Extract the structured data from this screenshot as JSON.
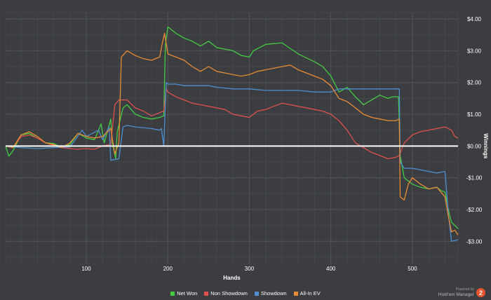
{
  "chart_data": {
    "type": "line",
    "xlabel": "Hands",
    "ylabel": "Winnings",
    "xlim": [
      1,
      556
    ],
    "ylim": [
      -3.7,
      4.2
    ],
    "x_ticks": [
      100,
      200,
      300,
      400,
      500
    ],
    "y_ticks": [
      {
        "value": 4,
        "label": "$4.00"
      },
      {
        "value": 3,
        "label": "$3.00"
      },
      {
        "value": 2,
        "label": "$2.00"
      },
      {
        "value": 1,
        "label": "$1.00"
      },
      {
        "value": 0,
        "label": "$0.00"
      },
      {
        "value": -1,
        "label": "-$1.00"
      },
      {
        "value": -2,
        "label": "-$2.00"
      },
      {
        "value": -3,
        "label": "-$3.00"
      }
    ],
    "grid": true,
    "legend_position": "bottom",
    "series": [
      {
        "name": "Net Won",
        "color": "#44cc44",
        "points": [
          [
            1,
            0
          ],
          [
            5,
            -0.32
          ],
          [
            10,
            -0.15
          ],
          [
            20,
            0.35
          ],
          [
            30,
            0.4
          ],
          [
            40,
            0.25
          ],
          [
            50,
            0.1
          ],
          [
            60,
            0.08
          ],
          [
            70,
            -0.05
          ],
          [
            80,
            0.05
          ],
          [
            90,
            0.4
          ],
          [
            100,
            0.25
          ],
          [
            110,
            0.2
          ],
          [
            115,
            0.5
          ],
          [
            118,
            0.7
          ],
          [
            122,
            0.1
          ],
          [
            130,
            0.85
          ],
          [
            132,
            0.1
          ],
          [
            136,
            -0.4
          ],
          [
            138,
            0.45
          ],
          [
            145,
            1.2
          ],
          [
            150,
            1.3
          ],
          [
            160,
            1.0
          ],
          [
            170,
            0.9
          ],
          [
            180,
            0.85
          ],
          [
            190,
            0.9
          ],
          [
            195,
            0.95
          ],
          [
            197,
            3.2
          ],
          [
            200,
            3.75
          ],
          [
            205,
            3.65
          ],
          [
            210,
            3.55
          ],
          [
            220,
            3.4
          ],
          [
            230,
            3.3
          ],
          [
            240,
            3.15
          ],
          [
            250,
            3.3
          ],
          [
            260,
            3.1
          ],
          [
            270,
            3.05
          ],
          [
            280,
            3.0
          ],
          [
            290,
            2.85
          ],
          [
            300,
            2.8
          ],
          [
            305,
            3.0
          ],
          [
            320,
            3.2
          ],
          [
            340,
            3.25
          ],
          [
            360,
            2.9
          ],
          [
            380,
            2.65
          ],
          [
            390,
            2.5
          ],
          [
            400,
            2.2
          ],
          [
            410,
            1.7
          ],
          [
            420,
            1.85
          ],
          [
            430,
            1.55
          ],
          [
            440,
            1.3
          ],
          [
            450,
            1.45
          ],
          [
            460,
            1.6
          ],
          [
            470,
            1.5
          ],
          [
            475,
            1.55
          ],
          [
            483,
            1.55
          ],
          [
            485,
            -0.3
          ],
          [
            490,
            -1.0
          ],
          [
            500,
            -1.2
          ],
          [
            510,
            -1.3
          ],
          [
            520,
            -1.35
          ],
          [
            530,
            -1.3
          ],
          [
            535,
            -1.4
          ],
          [
            540,
            -1.45
          ],
          [
            545,
            -2.1
          ],
          [
            548,
            -2.4
          ],
          [
            552,
            -2.5
          ],
          [
            556,
            -2.6
          ]
        ]
      },
      {
        "name": "Non Showdown",
        "color": "#e0504c",
        "points": [
          [
            1,
            0
          ],
          [
            10,
            -0.05
          ],
          [
            20,
            0.3
          ],
          [
            30,
            0.35
          ],
          [
            40,
            0.25
          ],
          [
            50,
            0.1
          ],
          [
            60,
            0.02
          ],
          [
            70,
            -0.05
          ],
          [
            80,
            -0.08
          ],
          [
            90,
            -0.1
          ],
          [
            100,
            -0.08
          ],
          [
            110,
            -0.1
          ],
          [
            120,
            0.0
          ],
          [
            130,
            0.05
          ],
          [
            135,
            1.3
          ],
          [
            140,
            1.45
          ],
          [
            150,
            1.45
          ],
          [
            160,
            1.2
          ],
          [
            170,
            1.1
          ],
          [
            180,
            0.95
          ],
          [
            190,
            1.05
          ],
          [
            195,
            1.1
          ],
          [
            198,
            1.8
          ],
          [
            200,
            1.7
          ],
          [
            210,
            1.55
          ],
          [
            220,
            1.45
          ],
          [
            230,
            1.35
          ],
          [
            240,
            1.3
          ],
          [
            250,
            1.25
          ],
          [
            260,
            1.2
          ],
          [
            270,
            1.15
          ],
          [
            280,
            1.0
          ],
          [
            290,
            0.95
          ],
          [
            300,
            0.9
          ],
          [
            310,
            1.1
          ],
          [
            320,
            1.15
          ],
          [
            330,
            1.25
          ],
          [
            340,
            1.35
          ],
          [
            350,
            1.3
          ],
          [
            360,
            1.25
          ],
          [
            370,
            1.2
          ],
          [
            380,
            1.15
          ],
          [
            390,
            1.1
          ],
          [
            400,
            1.0
          ],
          [
            410,
            0.8
          ],
          [
            420,
            0.5
          ],
          [
            430,
            0.1
          ],
          [
            440,
            -0.05
          ],
          [
            450,
            -0.2
          ],
          [
            460,
            -0.3
          ],
          [
            470,
            -0.4
          ],
          [
            480,
            -0.35
          ],
          [
            484,
            -0.3
          ],
          [
            490,
            0.1
          ],
          [
            500,
            0.35
          ],
          [
            510,
            0.45
          ],
          [
            520,
            0.5
          ],
          [
            530,
            0.55
          ],
          [
            540,
            0.6
          ],
          [
            548,
            0.5
          ],
          [
            552,
            0.3
          ],
          [
            556,
            0.25
          ]
        ]
      },
      {
        "name": "Showdown",
        "color": "#4f8fd0",
        "points": [
          [
            1,
            0
          ],
          [
            20,
            -0.05
          ],
          [
            40,
            -0.08
          ],
          [
            60,
            -0.05
          ],
          [
            80,
            -0.03
          ],
          [
            95,
            0.5
          ],
          [
            100,
            0.3
          ],
          [
            115,
            0.5
          ],
          [
            120,
            0.2
          ],
          [
            128,
            0.6
          ],
          [
            130,
            -0.45
          ],
          [
            140,
            -0.4
          ],
          [
            145,
            0.6
          ],
          [
            150,
            0.65
          ],
          [
            160,
            0.6
          ],
          [
            180,
            0.55
          ],
          [
            190,
            0.5
          ],
          [
            192,
            0.55
          ],
          [
            195,
            0.0
          ],
          [
            198,
            2.0
          ],
          [
            200,
            1.95
          ],
          [
            210,
            1.95
          ],
          [
            220,
            1.9
          ],
          [
            240,
            1.9
          ],
          [
            250,
            1.9
          ],
          [
            260,
            1.85
          ],
          [
            280,
            1.8
          ],
          [
            300,
            1.8
          ],
          [
            320,
            1.75
          ],
          [
            340,
            1.75
          ],
          [
            360,
            1.75
          ],
          [
            380,
            1.7
          ],
          [
            400,
            1.7
          ],
          [
            410,
            1.8
          ],
          [
            420,
            1.8
          ],
          [
            440,
            1.8
          ],
          [
            460,
            1.8
          ],
          [
            475,
            1.8
          ],
          [
            484,
            1.8
          ],
          [
            485,
            -0.5
          ],
          [
            490,
            -0.7
          ],
          [
            500,
            -0.7
          ],
          [
            510,
            -0.75
          ],
          [
            520,
            -0.8
          ],
          [
            530,
            -0.85
          ],
          [
            540,
            -0.8
          ],
          [
            544,
            -2.1
          ],
          [
            548,
            -3.0
          ],
          [
            556,
            -2.95
          ]
        ]
      },
      {
        "name": "All-In EV",
        "color": "#e88b35",
        "points": [
          [
            1,
            0
          ],
          [
            10,
            -0.05
          ],
          [
            20,
            0.35
          ],
          [
            30,
            0.45
          ],
          [
            40,
            0.3
          ],
          [
            50,
            0.1
          ],
          [
            60,
            0.05
          ],
          [
            70,
            -0.05
          ],
          [
            80,
            0.1
          ],
          [
            90,
            0.4
          ],
          [
            100,
            0.3
          ],
          [
            110,
            0.25
          ],
          [
            120,
            0.3
          ],
          [
            130,
            0.55
          ],
          [
            135,
            -0.25
          ],
          [
            140,
            0.1
          ],
          [
            143,
            2.8
          ],
          [
            150,
            3.0
          ],
          [
            160,
            2.85
          ],
          [
            170,
            2.75
          ],
          [
            180,
            2.7
          ],
          [
            190,
            2.8
          ],
          [
            193,
            3.2
          ],
          [
            196,
            3.55
          ],
          [
            200,
            2.9
          ],
          [
            210,
            2.8
          ],
          [
            220,
            2.7
          ],
          [
            230,
            2.5
          ],
          [
            240,
            2.35
          ],
          [
            250,
            2.5
          ],
          [
            260,
            2.35
          ],
          [
            270,
            2.3
          ],
          [
            280,
            2.25
          ],
          [
            290,
            2.2
          ],
          [
            300,
            2.25
          ],
          [
            310,
            2.35
          ],
          [
            320,
            2.4
          ],
          [
            340,
            2.5
          ],
          [
            350,
            2.55
          ],
          [
            360,
            2.4
          ],
          [
            370,
            2.3
          ],
          [
            380,
            2.2
          ],
          [
            390,
            2.1
          ],
          [
            400,
            1.9
          ],
          [
            410,
            1.5
          ],
          [
            420,
            1.4
          ],
          [
            430,
            1.2
          ],
          [
            440,
            1.0
          ],
          [
            450,
            0.9
          ],
          [
            460,
            0.85
          ],
          [
            470,
            0.8
          ],
          [
            480,
            0.8
          ],
          [
            484,
            0.85
          ],
          [
            485,
            -1.6
          ],
          [
            490,
            -1.7
          ],
          [
            495,
            -1.2
          ],
          [
            500,
            -1.0
          ],
          [
            510,
            -1.2
          ],
          [
            520,
            -1.35
          ],
          [
            530,
            -1.3
          ],
          [
            540,
            -1.6
          ],
          [
            544,
            -2.2
          ],
          [
            548,
            -2.7
          ],
          [
            552,
            -2.65
          ],
          [
            556,
            -2.8
          ]
        ]
      }
    ]
  },
  "legend": [
    {
      "label": "Net Won",
      "color": "#44cc44"
    },
    {
      "label": "Non Showdown",
      "color": "#e0504c"
    },
    {
      "label": "Showdown",
      "color": "#4f8fd0"
    },
    {
      "label": "All-In EV",
      "color": "#e88b35"
    }
  ],
  "brand": {
    "powered": "Powered by",
    "name": "Hold'em Manager",
    "badge": "2"
  }
}
